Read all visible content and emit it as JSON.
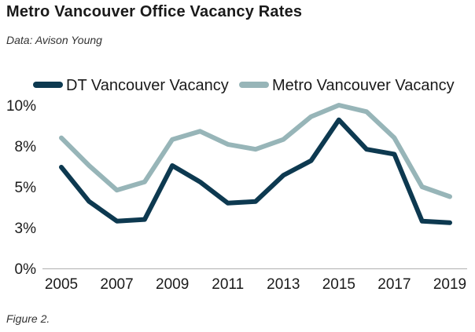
{
  "title": "Metro Vancouver Office Vacancy Rates",
  "subtitle": "Data: Avison Young",
  "caption": "Figure 2.",
  "colors": {
    "dt": "#0d3950",
    "metro": "#97b5b8",
    "axis": "#b0b0b0",
    "text": "#1a1a1a"
  },
  "chart_data": {
    "type": "line",
    "x": [
      2005,
      2006,
      2007,
      2008,
      2009,
      2010,
      2011,
      2012,
      2013,
      2014,
      2015,
      2016,
      2017,
      2018,
      2019
    ],
    "x_tick_labels": [
      "2005",
      "2007",
      "2009",
      "2011",
      "2013",
      "2015",
      "2017",
      "2019"
    ],
    "x_tick_values": [
      2005,
      2007,
      2009,
      2011,
      2013,
      2015,
      2017,
      2019
    ],
    "y_tick_labels": [
      "0%",
      "3%",
      "5%",
      "8%",
      "10%"
    ],
    "y_tick_values": [
      0,
      2.5,
      5,
      7.5,
      10
    ],
    "ylim": [
      0,
      10
    ],
    "xlim": [
      2005,
      2019
    ],
    "grid": false,
    "legend_position": "top",
    "series": [
      {
        "name": "DT Vancouver Vacancy",
        "color_key": "dt",
        "values": [
          6.2,
          4.1,
          2.9,
          3.0,
          6.3,
          5.3,
          4.0,
          4.1,
          5.7,
          6.6,
          9.1,
          7.3,
          7.0,
          2.9,
          2.8
        ]
      },
      {
        "name": "Metro Vancouver Vacancy",
        "color_key": "metro",
        "values": [
          8.0,
          6.3,
          4.8,
          5.3,
          7.9,
          8.4,
          7.6,
          7.3,
          7.9,
          9.3,
          10.0,
          9.6,
          8.0,
          5.0,
          4.4
        ]
      }
    ]
  }
}
